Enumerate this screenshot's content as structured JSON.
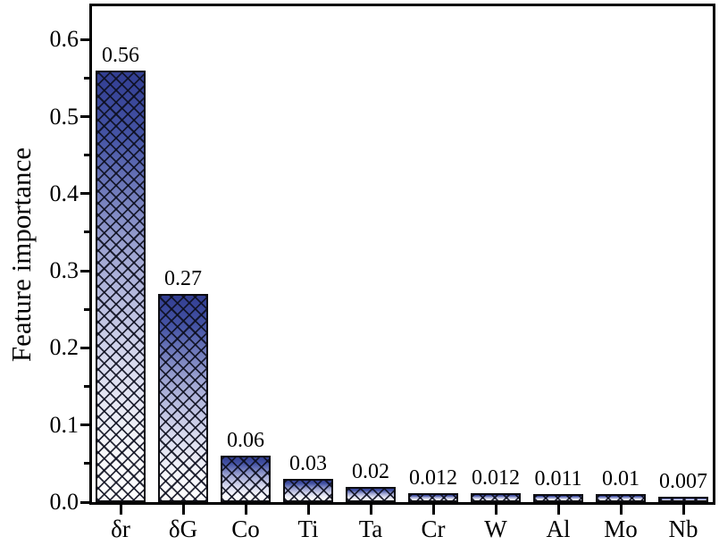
{
  "chart_data": {
    "type": "bar",
    "title": "",
    "xlabel": "",
    "ylabel": "Feature importance",
    "categories": [
      "δr",
      "δG",
      "Co",
      "Ti",
      "Ta",
      "Cr",
      "W",
      "Al",
      "Mo",
      "Nb"
    ],
    "values": [
      0.56,
      0.27,
      0.06,
      0.03,
      0.02,
      0.012,
      0.012,
      0.011,
      0.01,
      0.007
    ],
    "value_labels": [
      "0.56",
      "0.27",
      "0.06",
      "0.03",
      "0.02",
      "0.012",
      "0.012",
      "0.011",
      "0.01",
      "0.007"
    ],
    "ylim": [
      0,
      0.6465
    ],
    "yticks": [
      0.0,
      0.1,
      0.2,
      0.3,
      0.4,
      0.5,
      0.6
    ],
    "ytick_labels": [
      "0.0",
      "0.1",
      "0.2",
      "0.3",
      "0.4",
      "0.5",
      "0.6"
    ],
    "minor_yticks": [
      0.05,
      0.15,
      0.25,
      0.35,
      0.45,
      0.55
    ],
    "grid": false,
    "legend": null,
    "bar_style": "crosshatch-x over vertical gradient, black outline",
    "colors": {
      "bar_top": "#3a489c",
      "bar_bottom": "#ffffff",
      "hatch": "#14161e",
      "bar_border": "#0d0d12",
      "axis": "#000000",
      "text": "#000000",
      "background": "#ffffff"
    }
  }
}
